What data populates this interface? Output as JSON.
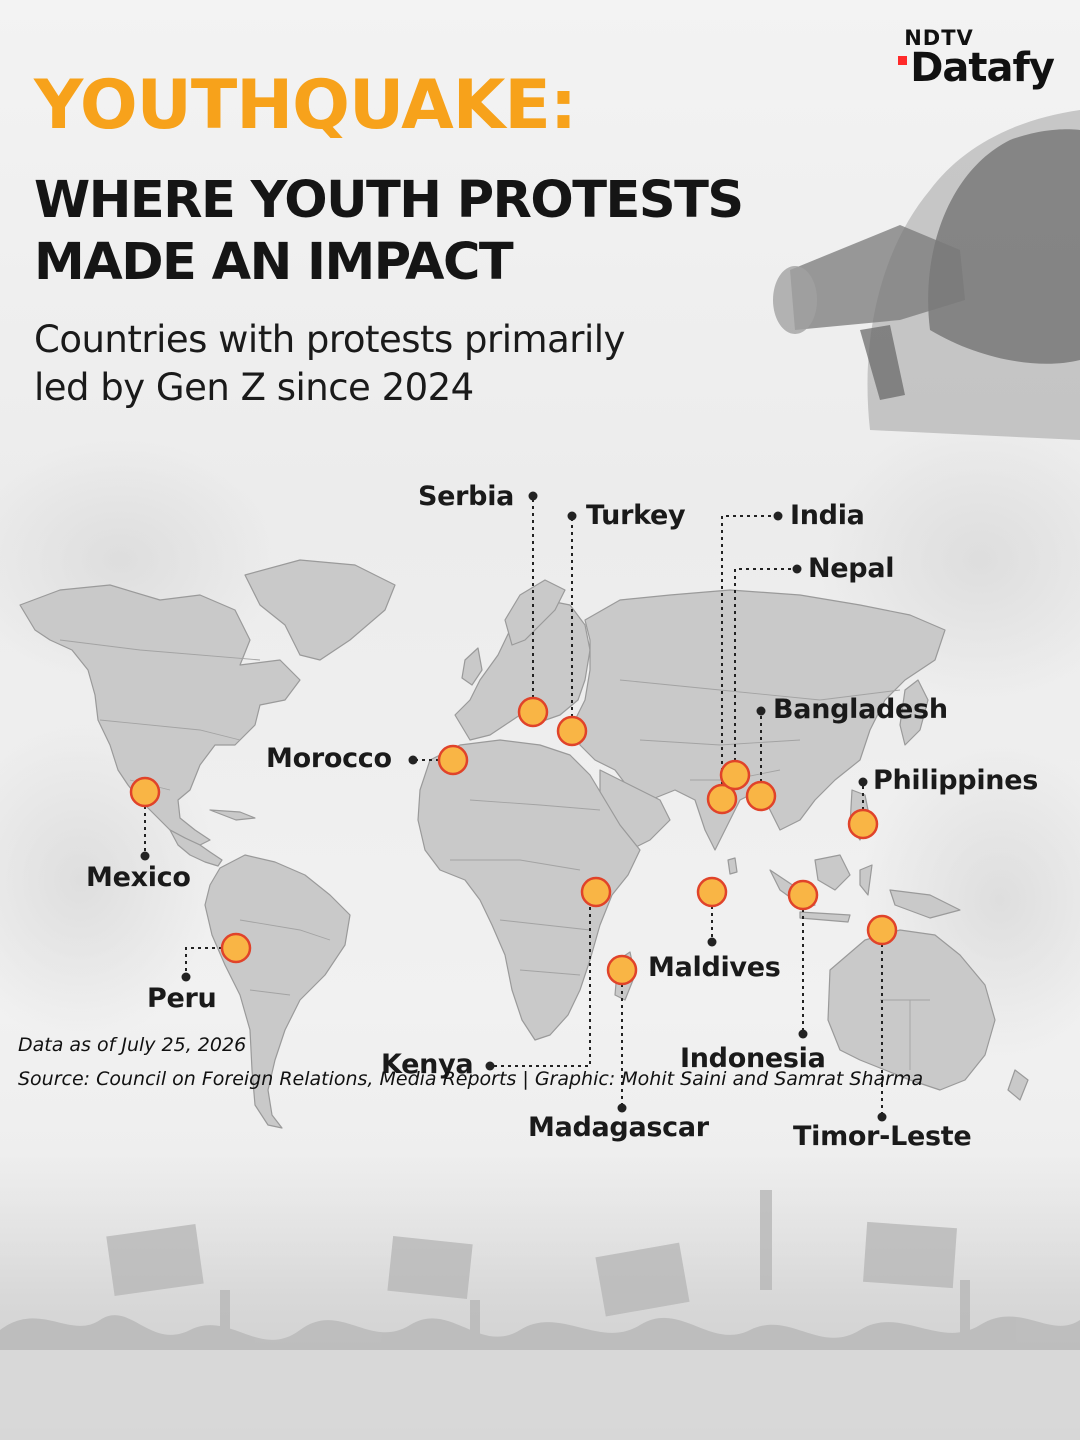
{
  "brand": {
    "top": "NDTV",
    "main": "Datafy"
  },
  "title": "YOUTHQUAKE:",
  "subtitle": {
    "line1": "WHERE YOUTH PROTESTS",
    "line2": "MADE AN IMPACT"
  },
  "description": {
    "line1": "Countries with protests primarily",
    "line2": "led by Gen Z since 2024"
  },
  "colors": {
    "accent": "#f7a21b",
    "marker_fill": "#f9b545",
    "marker_stroke": "#e0432a",
    "land": "#c9c9c9"
  },
  "countries": [
    {
      "name": "Serbia"
    },
    {
      "name": "Turkey"
    },
    {
      "name": "India"
    },
    {
      "name": "Nepal"
    },
    {
      "name": "Bangladesh"
    },
    {
      "name": "Morocco"
    },
    {
      "name": "Philippines"
    },
    {
      "name": "Mexico"
    },
    {
      "name": "Maldives"
    },
    {
      "name": "Peru"
    },
    {
      "name": "Indonesia"
    },
    {
      "name": "Kenya"
    },
    {
      "name": "Madagascar"
    },
    {
      "name": "Timor-Leste"
    }
  ],
  "footer": {
    "data_as_of": "Data as of July 25, 2026",
    "source": "Source: Council on Foreign Relations, Media Reports | Graphic: Mohit Saini and Samrat Sharma"
  }
}
